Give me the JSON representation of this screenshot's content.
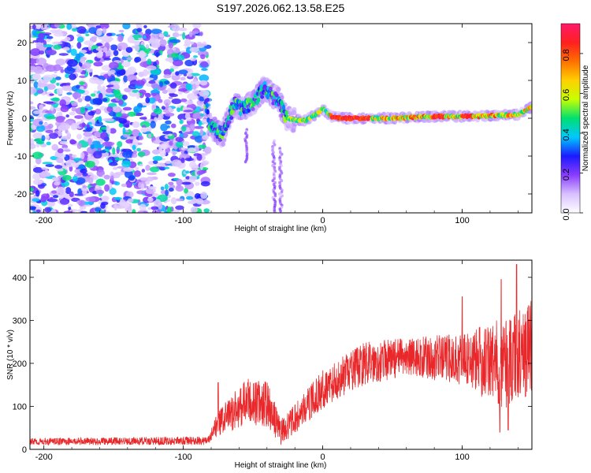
{
  "title": "S197.2026.062.13.58.E25",
  "chart_data": [
    {
      "type": "heatmap",
      "name": "spectrogram",
      "xlabel": "Height of straight line (km)",
      "ylabel": "Frequency (Hz)",
      "xlim": [
        -210,
        150
      ],
      "ylim": [
        -25,
        25
      ],
      "xticks": [
        -200,
        -100,
        0,
        100
      ],
      "yticks": [
        -20,
        -10,
        0,
        10,
        20
      ],
      "colorbar": {
        "label": "Normalized spectral amplitude",
        "range": [
          0,
          0.95
        ],
        "ticks": [
          0.0,
          0.2,
          0.4,
          0.6,
          0.8
        ],
        "tick_labels": [
          "0.0",
          "0.2",
          "0.4",
          "0.6",
          "0.8"
        ],
        "colors": [
          "#ffffff",
          "#d8c0ff",
          "#8a3cff",
          "#1a1aff",
          "#00c8ff",
          "#00e070",
          "#c8ff00",
          "#ffd000",
          "#ff7000",
          "#ff2020",
          "#ff1a6a"
        ]
      },
      "noise_region": {
        "x": [
          -210,
          -82
        ],
        "y": [
          -25,
          25
        ],
        "amplitude": [
          0.02,
          0.15
        ]
      },
      "ridge": [
        {
          "x": -82,
          "f": -1.5
        },
        {
          "x": -72,
          "f": -4.5
        },
        {
          "x": -64,
          "f": 3.5
        },
        {
          "x": -58,
          "f": 2.5
        },
        {
          "x": -50,
          "f": 4
        },
        {
          "x": -42,
          "f": 8
        },
        {
          "x": -36,
          "f": 6
        },
        {
          "x": -32,
          "f": 5
        },
        {
          "x": -26,
          "f": 0
        },
        {
          "x": -20,
          "f": -0.5
        },
        {
          "x": -12,
          "f": -0.5
        },
        {
          "x": -5,
          "f": 1
        },
        {
          "x": 0,
          "f": 2.5
        },
        {
          "x": 6,
          "f": 0.5
        },
        {
          "x": 15,
          "f": 0
        },
        {
          "x": 50,
          "f": 0
        },
        {
          "x": 80,
          "f": 0.5
        },
        {
          "x": 110,
          "f": 0.5
        },
        {
          "x": 140,
          "f": 1
        },
        {
          "x": 150,
          "f": 3
        }
      ]
    },
    {
      "type": "line",
      "name": "snr",
      "xlabel": "Height of straight line (km)",
      "ylabel": "SNR (10 * v/v)",
      "xlim": [
        -210,
        150
      ],
      "ylim": [
        0,
        440
      ],
      "xticks": [
        -200,
        -100,
        0,
        100
      ],
      "yticks": [
        0,
        100,
        200,
        300,
        400
      ],
      "color": "#e8282a",
      "envelope": [
        {
          "x": -210,
          "mean": 18,
          "spread": 8
        },
        {
          "x": -82,
          "mean": 20,
          "spread": 10
        },
        {
          "x": -75,
          "mean": 60,
          "spread": 30
        },
        {
          "x": -55,
          "mean": 110,
          "spread": 55
        },
        {
          "x": -40,
          "mean": 105,
          "spread": 55
        },
        {
          "x": -30,
          "mean": 40,
          "spread": 30
        },
        {
          "x": -20,
          "mean": 70,
          "spread": 35
        },
        {
          "x": 0,
          "mean": 140,
          "spread": 45
        },
        {
          "x": 30,
          "mean": 200,
          "spread": 50
        },
        {
          "x": 60,
          "mean": 215,
          "spread": 45
        },
        {
          "x": 100,
          "mean": 210,
          "spread": 60
        },
        {
          "x": 130,
          "mean": 200,
          "spread": 110
        },
        {
          "x": 150,
          "mean": 240,
          "spread": 110
        }
      ],
      "peaks": [
        {
          "x": -75,
          "y": 155
        },
        {
          "x": 100,
          "y": 355
        },
        {
          "x": 128,
          "y": 395
        },
        {
          "x": 139,
          "y": 430
        }
      ],
      "dips": [
        {
          "x": 127,
          "y": 40
        },
        {
          "x": 133,
          "y": 45
        }
      ]
    }
  ]
}
